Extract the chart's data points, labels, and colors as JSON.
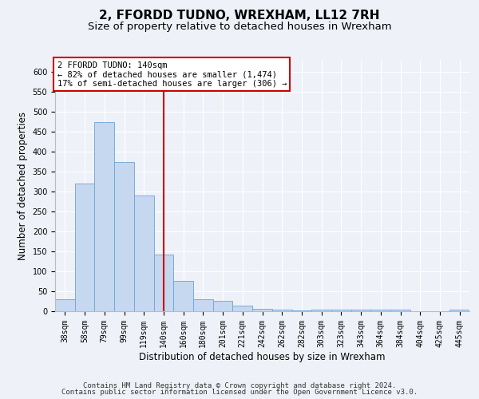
{
  "title": "2, FFORDD TUDNO, WREXHAM, LL12 7RH",
  "subtitle": "Size of property relative to detached houses in Wrexham",
  "xlabel": "Distribution of detached houses by size in Wrexham",
  "ylabel": "Number of detached properties",
  "categories": [
    "38sqm",
    "58sqm",
    "79sqm",
    "99sqm",
    "119sqm",
    "140sqm",
    "160sqm",
    "180sqm",
    "201sqm",
    "221sqm",
    "242sqm",
    "262sqm",
    "282sqm",
    "303sqm",
    "323sqm",
    "343sqm",
    "364sqm",
    "384sqm",
    "404sqm",
    "425sqm",
    "445sqm"
  ],
  "values": [
    30,
    320,
    475,
    375,
    290,
    143,
    77,
    30,
    27,
    15,
    7,
    5,
    3,
    4,
    4,
    4,
    4,
    4,
    0,
    0,
    5
  ],
  "bar_color": "#c5d8f0",
  "bar_edge_color": "#6ba3d6",
  "vline_x": 5,
  "vline_color": "#cc0000",
  "annotation_title": "2 FFORDD TUDNO: 140sqm",
  "annotation_line1": "← 82% of detached houses are smaller (1,474)",
  "annotation_line2": "17% of semi-detached houses are larger (306) →",
  "annotation_box_color": "#ffffff",
  "annotation_box_edge_color": "#cc0000",
  "ylim": [
    0,
    630
  ],
  "yticks": [
    0,
    50,
    100,
    150,
    200,
    250,
    300,
    350,
    400,
    450,
    500,
    550,
    600
  ],
  "footer1": "Contains HM Land Registry data © Crown copyright and database right 2024.",
  "footer2": "Contains public sector information licensed under the Open Government Licence v3.0.",
  "background_color": "#eef2f8",
  "plot_background": "#eef2f8",
  "title_fontsize": 11,
  "subtitle_fontsize": 9.5,
  "axis_label_fontsize": 8.5,
  "tick_fontsize": 7,
  "footer_fontsize": 6.5,
  "annotation_fontsize": 7.5
}
